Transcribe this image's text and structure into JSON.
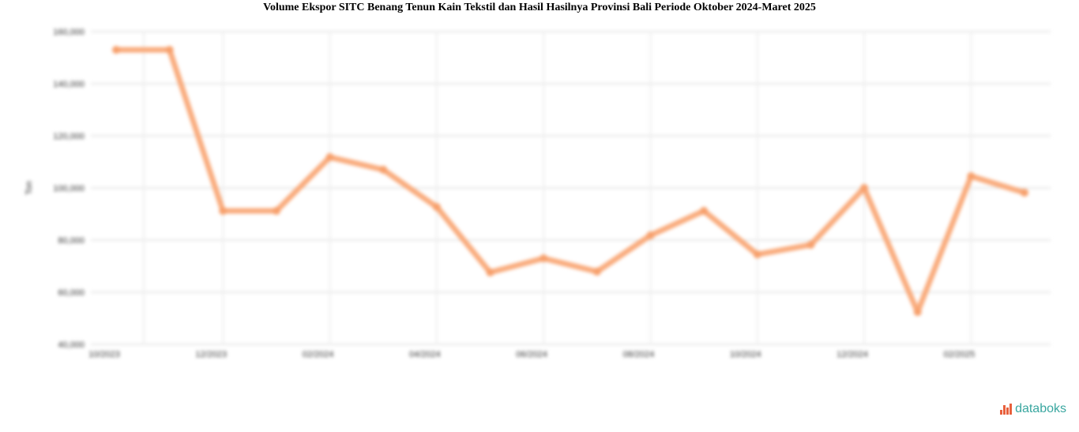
{
  "chart_data": {
    "type": "line",
    "title": "Volume Ekspor SITC Benang Tenun Kain Tekstil dan Hasil Hasilnya Provinsi Bali Periode Oktober 2024-Maret 2025",
    "xlabel": "",
    "ylabel": "Ton",
    "x": [
      "10/2023",
      "11/2023",
      "12/2023",
      "01/2024",
      "02/2024",
      "03/2024",
      "04/2024",
      "05/2024",
      "06/2024",
      "07/2024",
      "08/2024",
      "09/2024",
      "10/2024",
      "11/2024",
      "12/2024",
      "01/2025",
      "02/2025",
      "03/2025"
    ],
    "x_tick_labels": [
      "10/2023",
      "12/2023",
      "02/2024",
      "04/2024",
      "06/2024",
      "08/2024",
      "10/2024",
      "12/2024",
      "02/2025"
    ],
    "series": [
      {
        "values": [
          153000,
          153000,
          91200,
          91200,
          111800,
          107000,
          92700,
          67600,
          73000,
          67900,
          81800,
          91200,
          74500,
          78200,
          100000,
          52400,
          104500,
          98200
        ],
        "color": "#f9ab7c"
      }
    ],
    "ylim": [
      40000,
      160000
    ],
    "y_ticks": [
      40000,
      60000,
      80000,
      100000,
      120000,
      140000,
      160000
    ],
    "y_tick_labels": [
      "40,000",
      "60,000",
      "80,000",
      "100,000",
      "120,000",
      "140,000",
      "160,000"
    ],
    "grid": true,
    "legend": "none"
  },
  "brand": {
    "name": "databoks"
  }
}
